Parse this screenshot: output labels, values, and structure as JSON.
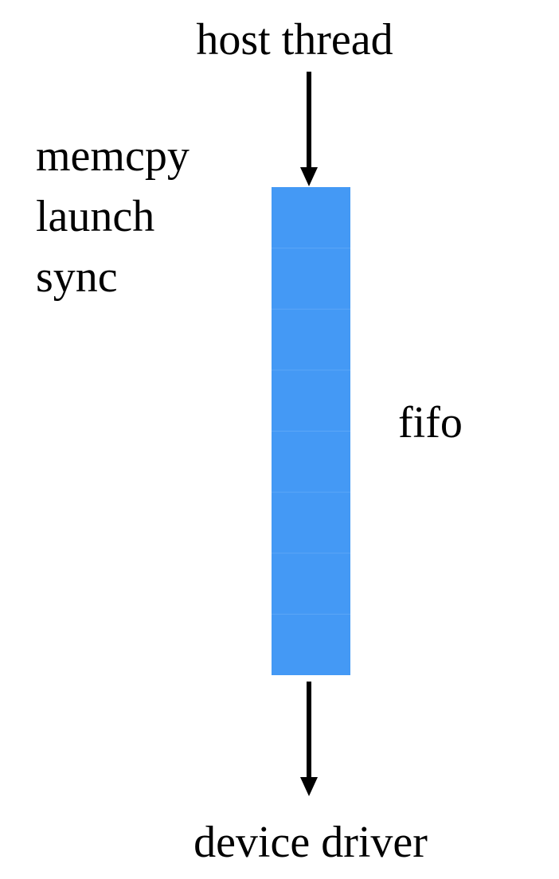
{
  "diagram": {
    "top_label": "host thread",
    "operations": [
      "memcpy",
      "launch",
      "sync"
    ],
    "queue_label": "fifo",
    "bottom_label": "device driver",
    "queue_slots": 8,
    "colors": {
      "slot_fill": "#4499f5",
      "slot_divider": "#5ba6f7",
      "arrow": "#000000",
      "text": "#000000",
      "background": "#ffffff"
    }
  }
}
